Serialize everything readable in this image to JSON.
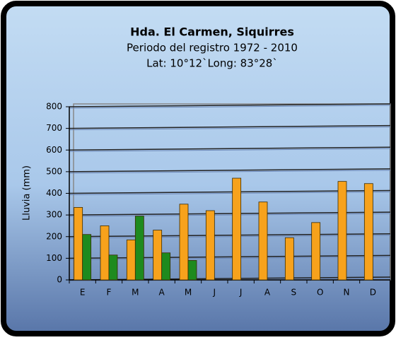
{
  "chart_data": {
    "type": "bar",
    "title": "Hda. El Carmen, Siquirres",
    "subtitle": [
      "Periodo del registro  1972 - 2010",
      "Lat: 10°12`Long: 83°28`"
    ],
    "y_label": "Lluvia (mm)",
    "categories": [
      "E",
      "F",
      "M",
      "A",
      "M",
      "J",
      "J",
      "A",
      "S",
      "O",
      "N",
      "D"
    ],
    "series": [
      {
        "color": "#f7a21c",
        "values": [
          335,
          250,
          185,
          230,
          350,
          320,
          470,
          360,
          195,
          265,
          455,
          445
        ]
      },
      {
        "color": "#1e8a1e",
        "values": [
          210,
          115,
          295,
          125,
          90,
          null,
          null,
          null,
          null,
          null,
          null,
          null
        ]
      }
    ],
    "ylim": [
      0,
      800
    ],
    "yticks": [
      0,
      100,
      200,
      300,
      400,
      500,
      600,
      700,
      800
    ],
    "grid": true
  }
}
